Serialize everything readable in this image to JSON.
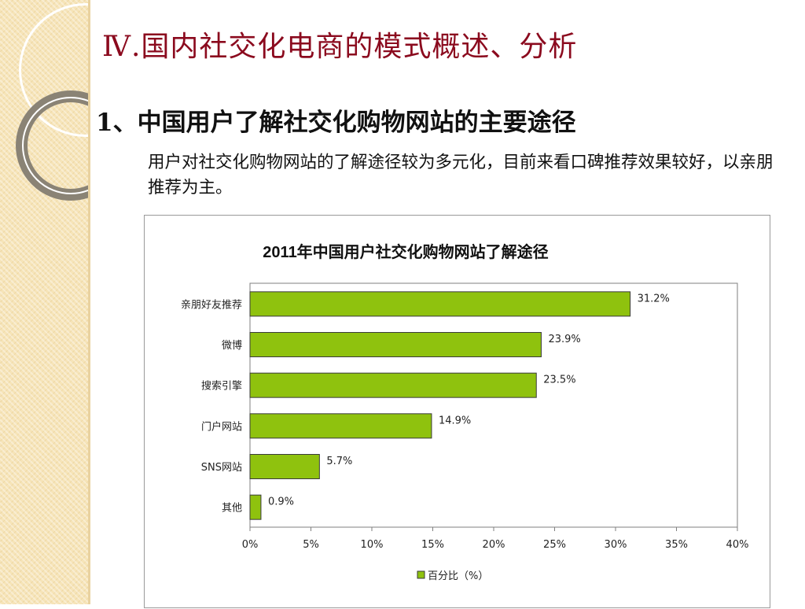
{
  "slide": {
    "title": "Ⅳ.国内社交化电商的模式概述、分析",
    "subheading": "1、中国用户了解社交化购物网站的主要途径",
    "description": "用户对社交化购物网站的了解途径较为多元化，目前来看口碑推荐效果较好，以亲朋推荐为主。"
  },
  "colors": {
    "title": "#8b0a1e",
    "bar_fill": "#8fc20e",
    "bar_stroke": "#3a3a3a"
  },
  "chart_data": {
    "type": "bar",
    "orientation": "horizontal",
    "title": "2011年中国用户社交化购物网站了解途径",
    "categories": [
      "亲朋好友推荐",
      "微博",
      "搜索引擎",
      "门户网站",
      "SNS网站",
      "其他"
    ],
    "series": [
      {
        "name": "百分比（%）",
        "values": [
          31.2,
          23.9,
          23.5,
          14.9,
          5.7,
          0.9
        ],
        "labels": [
          "31.2%",
          "23.9%",
          "23.5%",
          "14.9%",
          "5.7%",
          "0.9%"
        ]
      }
    ],
    "xlim": [
      0,
      40
    ],
    "ticks": [
      "0%",
      "5%",
      "10%",
      "15%",
      "20%",
      "25%",
      "30%",
      "35%",
      "40%"
    ],
    "grid": false,
    "legend_position": "bottom"
  }
}
